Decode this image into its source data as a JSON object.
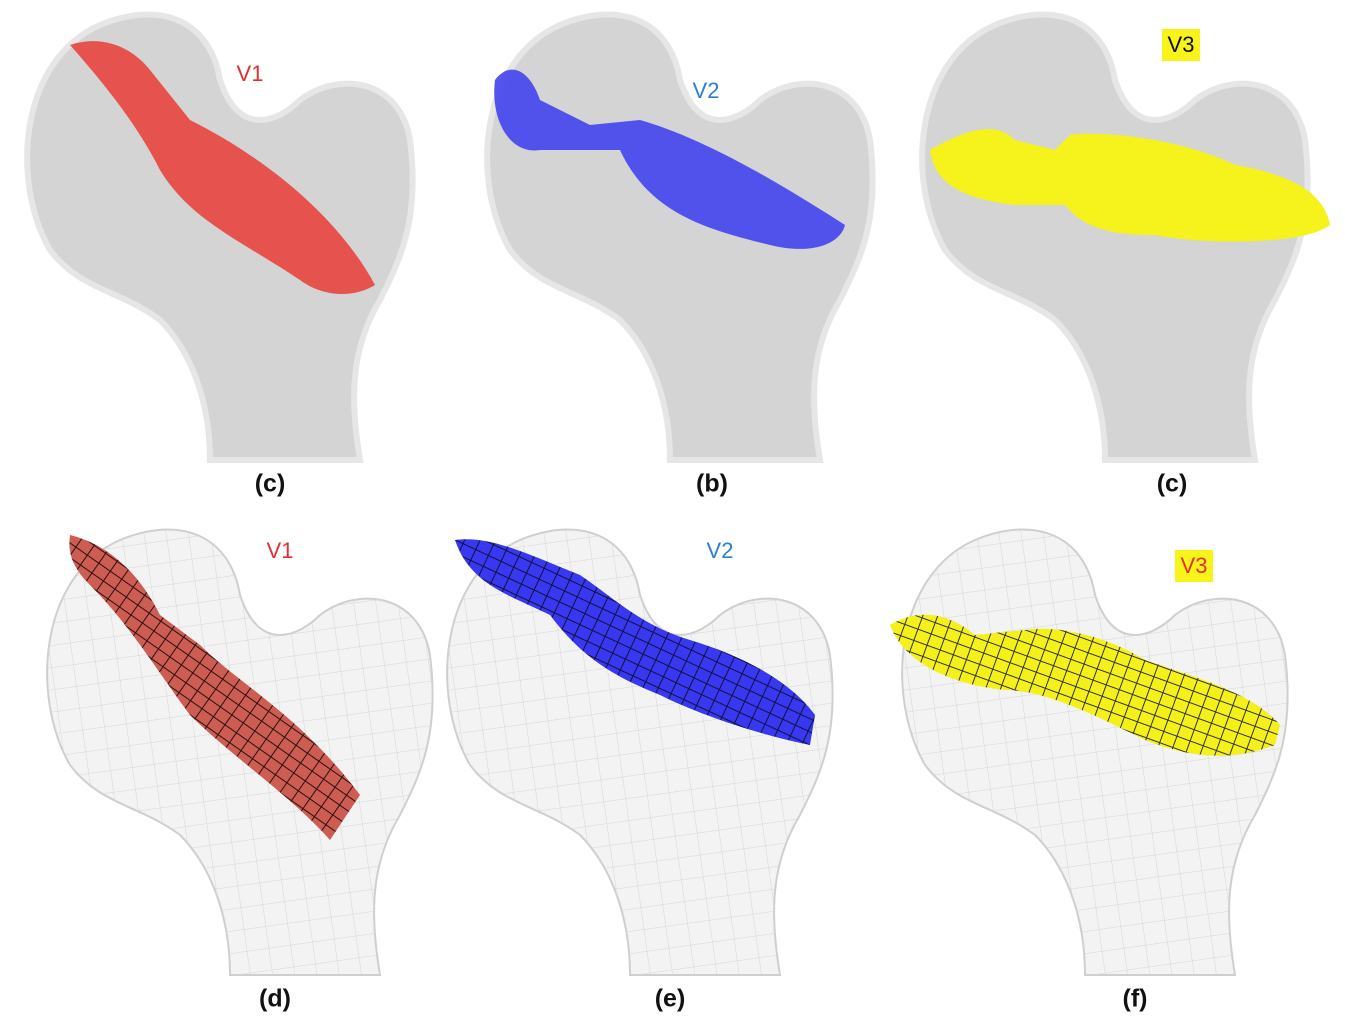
{
  "panels": [
    {
      "label": "V1",
      "caption": "(c)"
    },
    {
      "label": "V2",
      "caption": "(b)"
    },
    {
      "label": "V3",
      "caption": "(c)"
    },
    {
      "label": "V1",
      "caption": "(d)"
    },
    {
      "label": "V2",
      "caption": "(e)"
    },
    {
      "label": "V3",
      "caption": "(f)"
    }
  ]
}
